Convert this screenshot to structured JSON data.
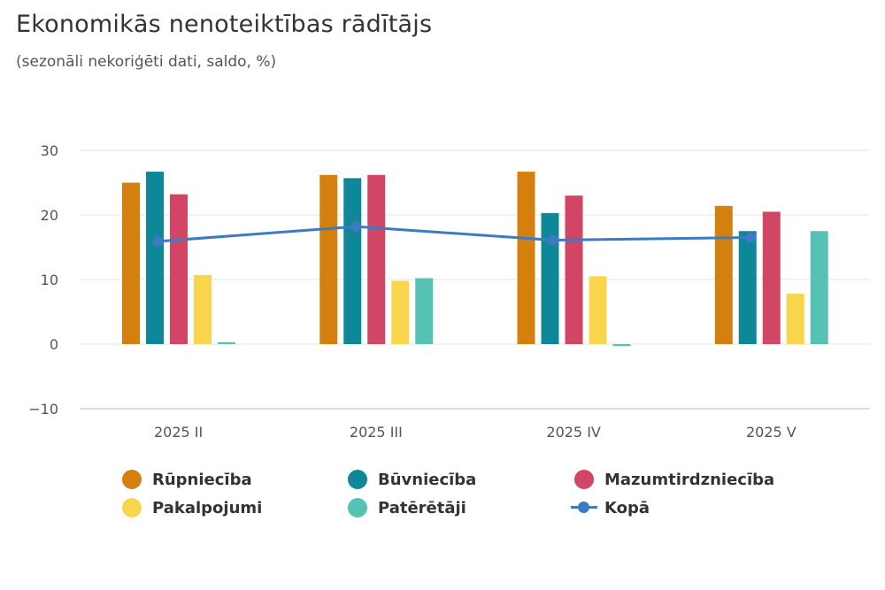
{
  "title": "Ekonomikās nenoteiktības rādītājs",
  "subtitle": "(sezonāli nekoriģēti dati, saldo, %)",
  "chart_data": {
    "type": "bar",
    "categories": [
      "2025 II",
      "2025 III",
      "2025 IV",
      "2025 V"
    ],
    "ylim": [
      -10,
      30
    ],
    "yticks": [
      -10,
      0,
      10,
      20,
      30
    ],
    "grid": true,
    "legend_position": "bottom",
    "series": [
      {
        "name": "Rūpniecība",
        "type": "bar",
        "color": "#d4800e",
        "values": [
          25.0,
          26.2,
          26.7,
          21.4
        ]
      },
      {
        "name": "Būvniecība",
        "type": "bar",
        "color": "#0e8799",
        "values": [
          26.7,
          25.7,
          20.3,
          17.5
        ]
      },
      {
        "name": "Mazumtirdzniecība",
        "type": "bar",
        "color": "#d34565",
        "values": [
          23.2,
          26.2,
          23.0,
          20.5
        ]
      },
      {
        "name": "Pakalpojumi",
        "type": "bar",
        "color": "#f8d54c",
        "values": [
          10.7,
          9.8,
          10.5,
          7.8
        ]
      },
      {
        "name": "Patērētāji",
        "type": "bar",
        "color": "#55c2b4",
        "values": [
          0.3,
          10.2,
          -0.3,
          17.5
        ]
      },
      {
        "name": "Kopā",
        "type": "line",
        "color": "#3c7ac6",
        "values": [
          15.9,
          18.2,
          16.1,
          16.5
        ]
      }
    ]
  }
}
